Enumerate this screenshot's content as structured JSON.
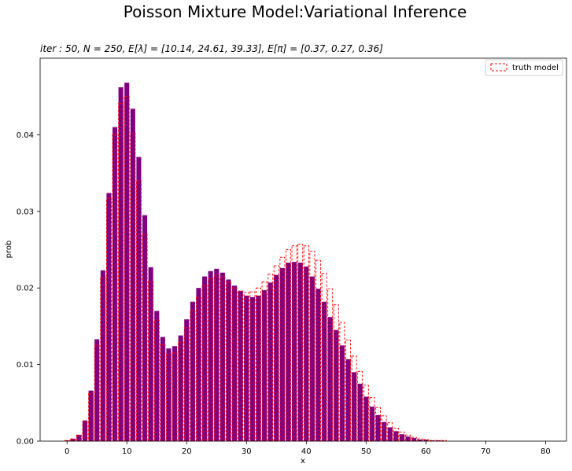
{
  "chart_data": {
    "type": "bar",
    "suptitle": "Poisson Mixture Model:Variational Inference",
    "title": "iter : 50, N = 250, E[λ] = [10.14, 24.61, 39.33], E[π] = [0.37, 0.27, 0.36]",
    "xlabel": "x",
    "ylabel": "prob",
    "xlim": [
      -4.5,
      83.5
    ],
    "ylim": [
      0,
      0.05
    ],
    "xticks": [
      0,
      10,
      20,
      30,
      40,
      50,
      60,
      70,
      80
    ],
    "yticks": [
      "0.00",
      "0.01",
      "0.02",
      "0.03",
      "0.04"
    ],
    "legend": {
      "placement": "top-right",
      "label": "truth model"
    },
    "colors": {
      "estimate_fill": "#800080",
      "truth_edge": "#ff0000"
    },
    "x": [
      0,
      1,
      2,
      3,
      4,
      5,
      6,
      7,
      8,
      9,
      10,
      11,
      12,
      13,
      14,
      15,
      16,
      17,
      18,
      19,
      20,
      21,
      22,
      23,
      24,
      25,
      26,
      27,
      28,
      29,
      30,
      31,
      32,
      33,
      34,
      35,
      36,
      37,
      38,
      39,
      40,
      41,
      42,
      43,
      44,
      45,
      46,
      47,
      48,
      49,
      50,
      51,
      52,
      53,
      54,
      55,
      56,
      57,
      58,
      59,
      60,
      61,
      62,
      63,
      64,
      65,
      66,
      67,
      68,
      69,
      70,
      71,
      72,
      73,
      74,
      75,
      76,
      77,
      78,
      79,
      80
    ],
    "series": [
      {
        "name": "",
        "style": "filled",
        "values": [
          0.0001,
          0.0003,
          0.0008,
          0.0027,
          0.0066,
          0.0133,
          0.0223,
          0.0324,
          0.041,
          0.0462,
          0.0468,
          0.0434,
          0.0371,
          0.0295,
          0.0227,
          0.017,
          0.0136,
          0.0121,
          0.0124,
          0.0138,
          0.0159,
          0.0182,
          0.02,
          0.0215,
          0.0222,
          0.0225,
          0.022,
          0.0211,
          0.0203,
          0.0196,
          0.019,
          0.0188,
          0.019,
          0.0197,
          0.0207,
          0.0217,
          0.0226,
          0.0233,
          0.0234,
          0.0233,
          0.0228,
          0.0215,
          0.0199,
          0.0182,
          0.0162,
          0.0145,
          0.0125,
          0.0107,
          0.009,
          0.0075,
          0.0058,
          0.0045,
          0.0034,
          0.0025,
          0.0018,
          0.0013,
          0.0009,
          0.0006,
          0.0004,
          0.0002,
          0.0002,
          0.0001,
          0.0001,
          0.0,
          0.0,
          0,
          0,
          0,
          0,
          0,
          0,
          0,
          0,
          0,
          0,
          0,
          0,
          0,
          0,
          0,
          0
        ]
      },
      {
        "name": "truth model",
        "style": "dashed-outline",
        "values": [
          0.0001,
          0.0003,
          0.0008,
          0.0025,
          0.0062,
          0.0125,
          0.0214,
          0.0317,
          0.0401,
          0.0441,
          0.045,
          0.0402,
          0.034,
          0.027,
          0.0208,
          0.0158,
          0.0126,
          0.0113,
          0.0115,
          0.0129,
          0.0148,
          0.017,
          0.0188,
          0.0203,
          0.0212,
          0.0217,
          0.0214,
          0.0207,
          0.02,
          0.0196,
          0.0194,
          0.0195,
          0.02,
          0.0208,
          0.0218,
          0.0229,
          0.024,
          0.025,
          0.0255,
          0.0257,
          0.0255,
          0.0248,
          0.0236,
          0.0219,
          0.0199,
          0.0178,
          0.0155,
          0.0132,
          0.0111,
          0.0091,
          0.0073,
          0.0057,
          0.0044,
          0.0033,
          0.0024,
          0.0017,
          0.0012,
          0.0008,
          0.0005,
          0.0003,
          0.0002,
          0.0001,
          0.0001,
          0.0001,
          0.0,
          0,
          0,
          0,
          0,
          0,
          0,
          0,
          0,
          0,
          0,
          0,
          0,
          0,
          0,
          0,
          0
        ]
      }
    ]
  }
}
